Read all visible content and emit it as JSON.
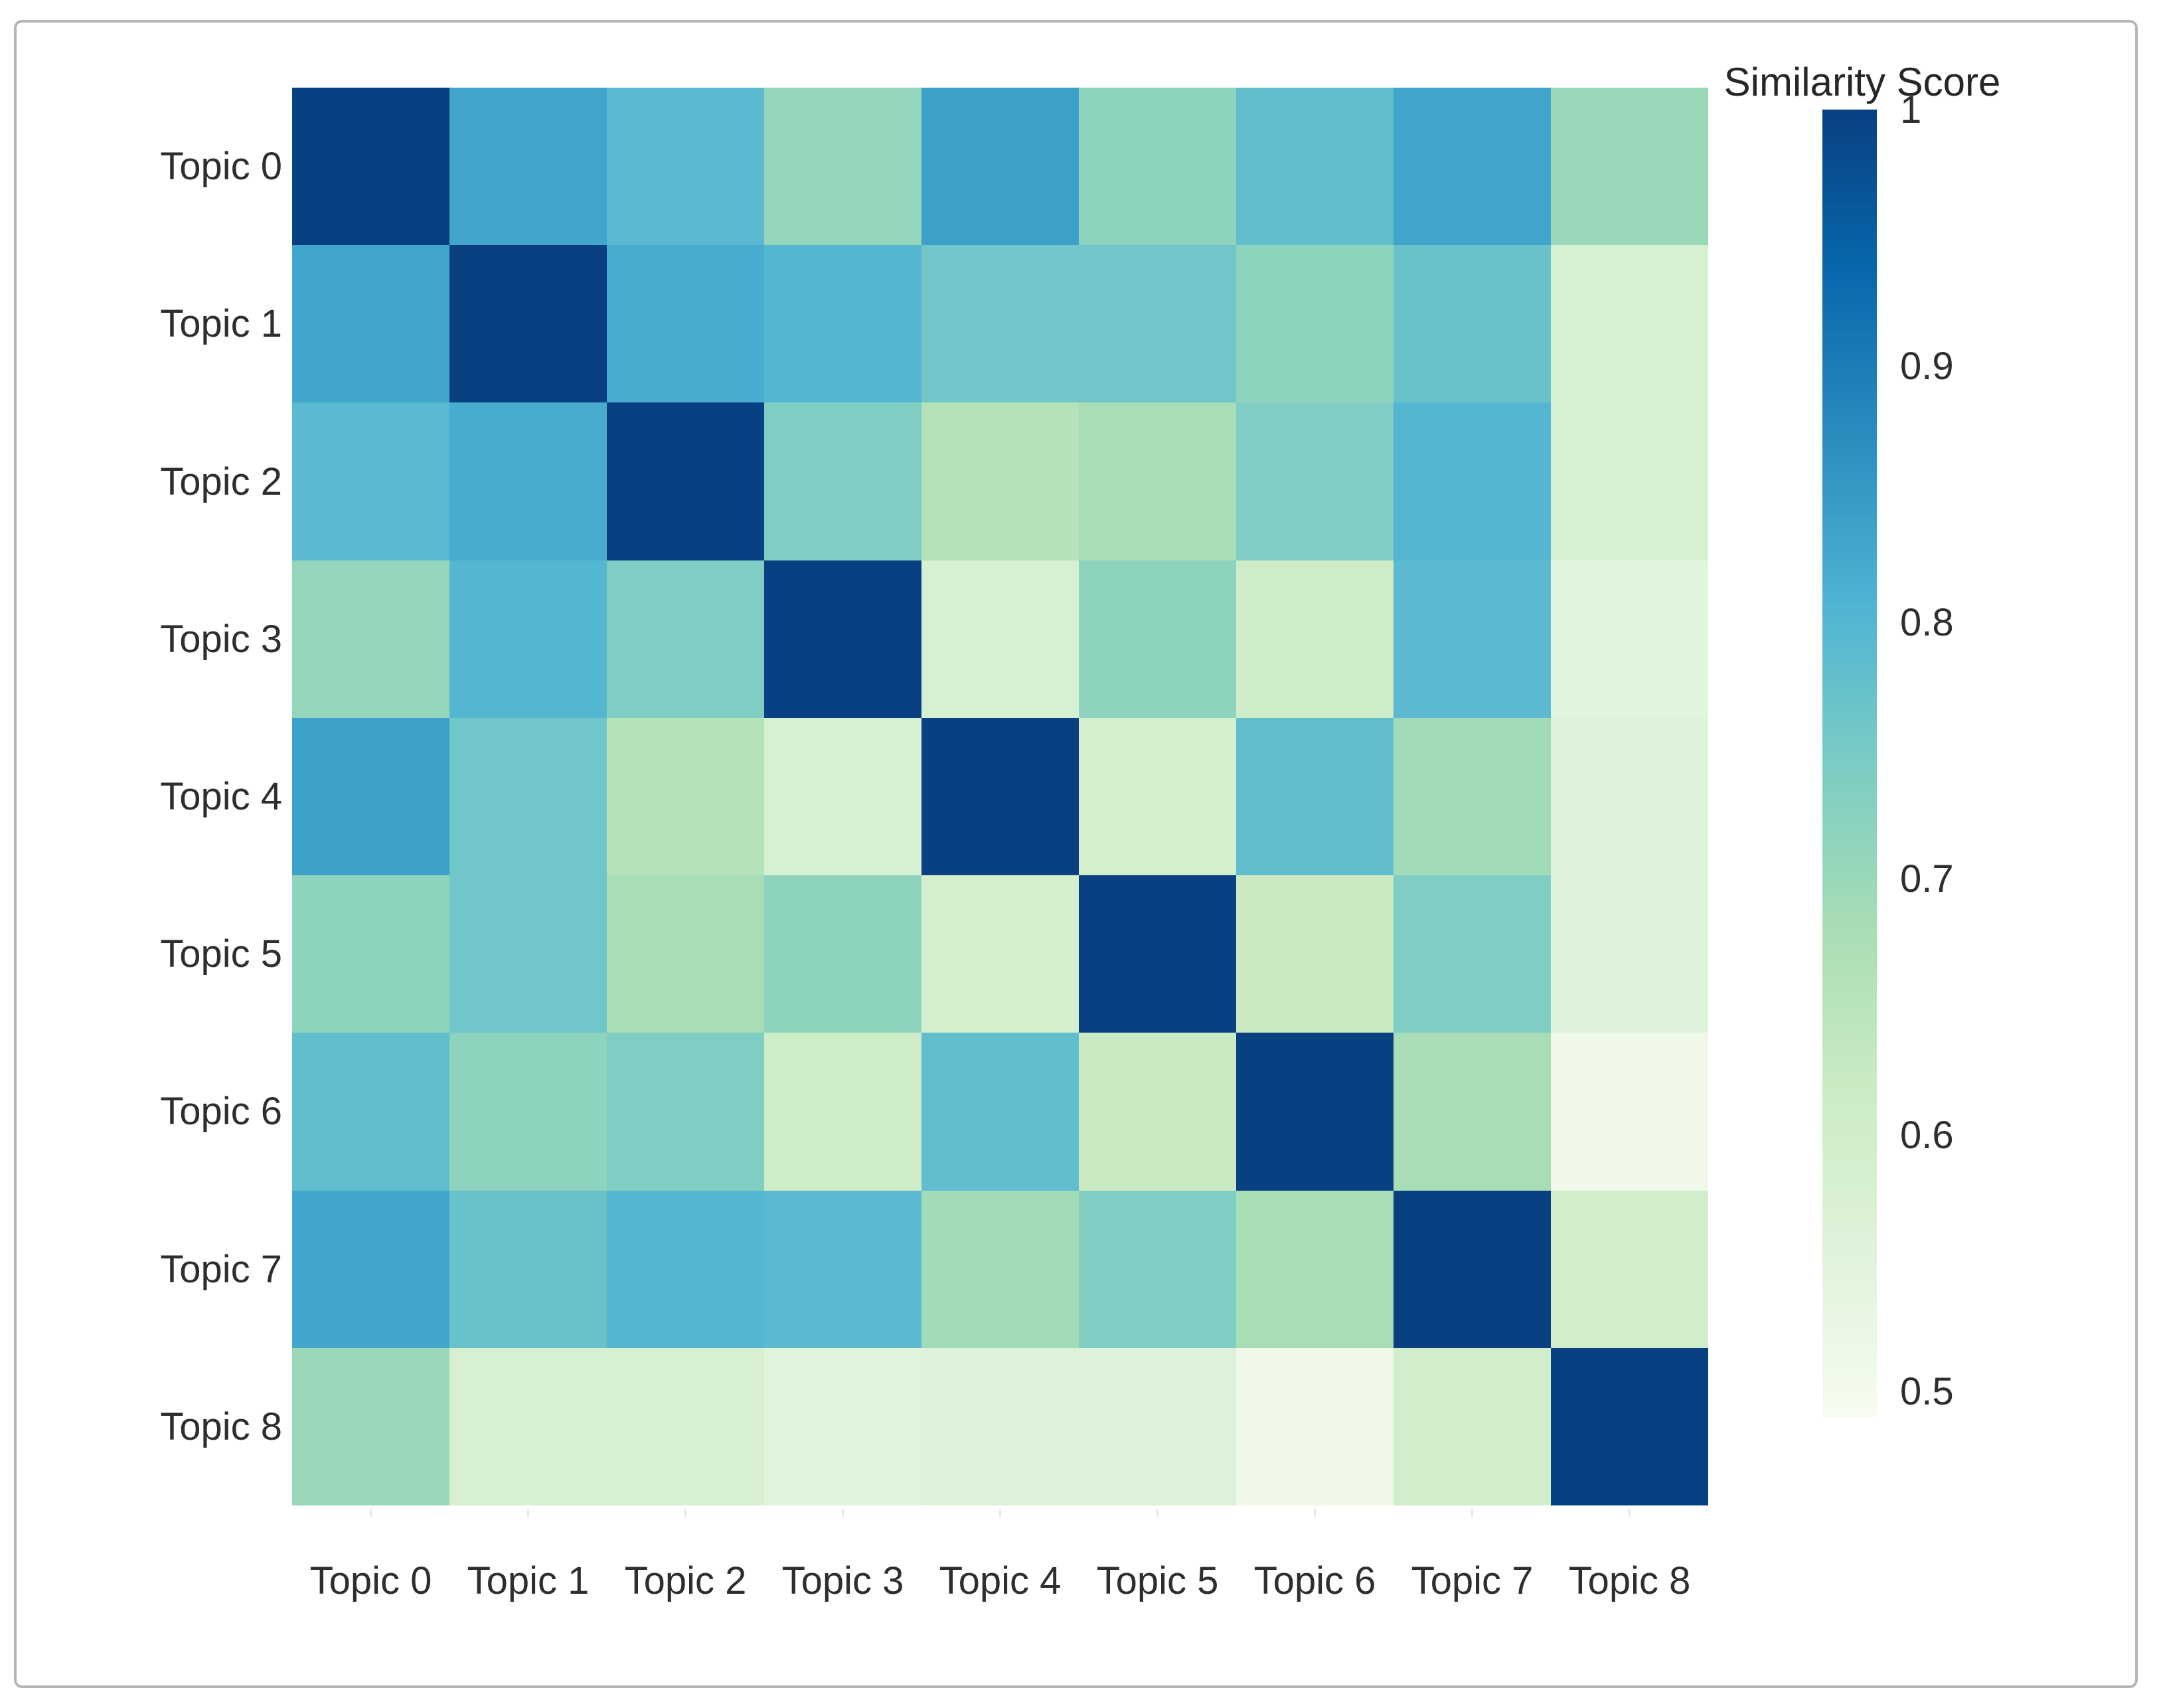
{
  "chart_data": {
    "type": "heatmap",
    "title": "",
    "x_labels": [
      "Topic 0",
      "Topic 1",
      "Topic 2",
      "Topic 3",
      "Topic 4",
      "Topic 5",
      "Topic 6",
      "Topic 7",
      "Topic 8"
    ],
    "y_labels": [
      "Topic 0",
      "Topic 1",
      "Topic 2",
      "Topic 3",
      "Topic 4",
      "Topic 5",
      "Topic 6",
      "Topic 7",
      "Topic 8"
    ],
    "matrix": [
      [
        1.0,
        0.83,
        0.79,
        0.71,
        0.84,
        0.72,
        0.78,
        0.83,
        0.7
      ],
      [
        0.83,
        1.0,
        0.82,
        0.8,
        0.76,
        0.76,
        0.72,
        0.77,
        0.58
      ],
      [
        0.79,
        0.82,
        1.0,
        0.74,
        0.66,
        0.68,
        0.74,
        0.8,
        0.58
      ],
      [
        0.71,
        0.8,
        0.74,
        1.0,
        0.58,
        0.72,
        0.61,
        0.79,
        0.55
      ],
      [
        0.84,
        0.76,
        0.66,
        0.58,
        1.0,
        0.59,
        0.78,
        0.69,
        0.56
      ],
      [
        0.72,
        0.76,
        0.68,
        0.72,
        0.59,
        1.0,
        0.62,
        0.74,
        0.56
      ],
      [
        0.78,
        0.72,
        0.74,
        0.61,
        0.78,
        0.62,
        1.0,
        0.68,
        0.51
      ],
      [
        0.83,
        0.77,
        0.8,
        0.79,
        0.69,
        0.74,
        0.68,
        1.0,
        0.6
      ],
      [
        0.7,
        0.58,
        0.58,
        0.55,
        0.56,
        0.56,
        0.51,
        0.6,
        1.0
      ]
    ],
    "grid": false,
    "legend_position": "right",
    "colorbar": {
      "title": "Similarity Score",
      "ticks": [
        "1",
        "0.9",
        "0.8",
        "0.7",
        "0.6",
        "0.5"
      ],
      "tick_values": [
        1.0,
        0.9,
        0.8,
        0.7,
        0.6,
        0.5
      ],
      "vmin": 0.49,
      "vmax": 1.0,
      "colormap": "GnBu",
      "colormap_stops": [
        [
          0.0,
          "#f7fcf0"
        ],
        [
          0.125,
          "#e0f3db"
        ],
        [
          0.25,
          "#ccebc5"
        ],
        [
          0.375,
          "#a8ddb5"
        ],
        [
          0.5,
          "#7bccc4"
        ],
        [
          0.625,
          "#4eb3d3"
        ],
        [
          0.75,
          "#2b8cbe"
        ],
        [
          0.875,
          "#0868ac"
        ],
        [
          1.0,
          "#084081"
        ]
      ]
    },
    "accent_color_max": "#084081",
    "accent_color_min": "#f7fcf0"
  }
}
